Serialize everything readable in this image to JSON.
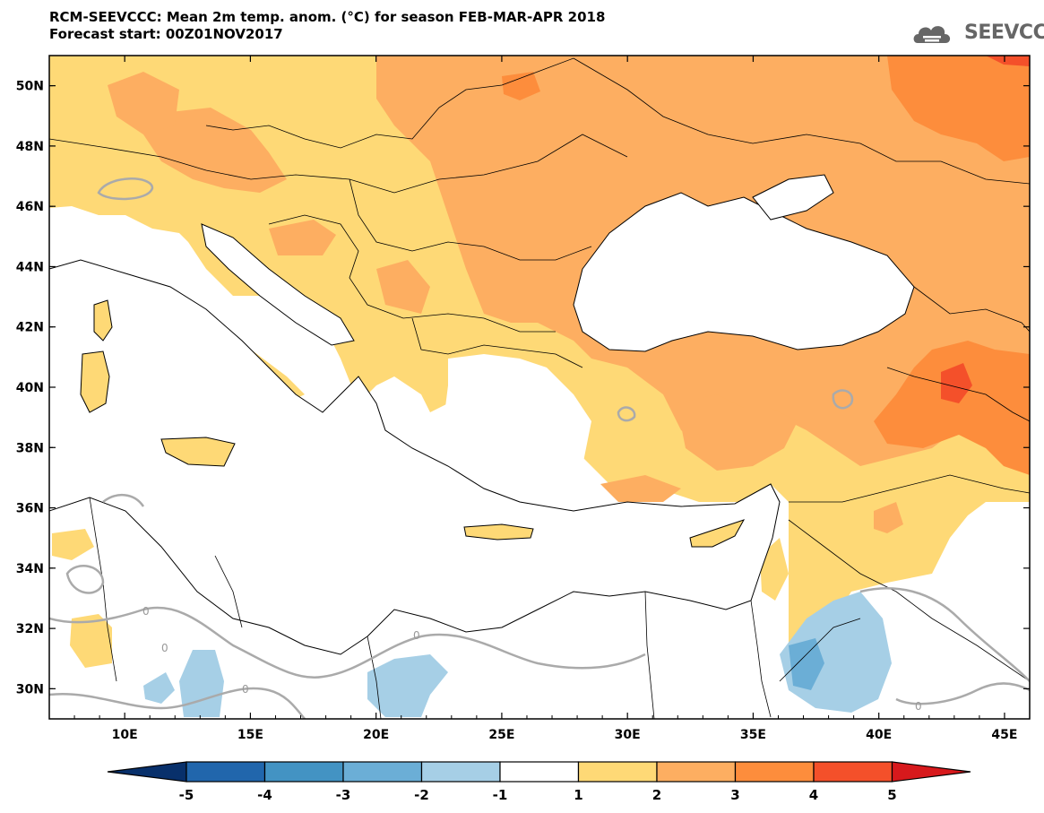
{
  "header": {
    "title_line1": "RCM-SEEVCCC: Mean 2m temp. anom. (°C) for season FEB-MAR-APR 2018",
    "title_line2": "Forecast start: 00Z01NOV2017"
  },
  "logo": {
    "text": "SEEVCCC",
    "icon": "cloud-icon"
  },
  "chart_data": {
    "type": "heatmap",
    "title": "RCM-SEEVCCC: Mean 2m temp. anom. (°C) for season FEB-MAR-APR 2018",
    "subtitle": "Forecast start: 00Z01NOV2017",
    "lon_range": [
      7,
      46
    ],
    "lat_range": [
      29,
      51
    ],
    "lon_ticks": [
      "10E",
      "15E",
      "20E",
      "25E",
      "30E",
      "35E",
      "40E",
      "45E"
    ],
    "lat_ticks": [
      "50N",
      "48N",
      "46N",
      "44N",
      "42N",
      "40N",
      "38N",
      "36N",
      "34N",
      "32N",
      "30N"
    ],
    "contour_label": "0",
    "colorbar": {
      "levels": [
        "-5",
        "-4",
        "-3",
        "-2",
        "-1",
        "1",
        "2",
        "3",
        "4",
        "5"
      ],
      "colors": [
        "#08306b",
        "#2166ac",
        "#4393c3",
        "#6baed6",
        "#a6cfe6",
        "#ffffff",
        "#fed976",
        "#fdae61",
        "#fd8d3c",
        "#f4502a",
        "#d7191c"
      ]
    }
  }
}
